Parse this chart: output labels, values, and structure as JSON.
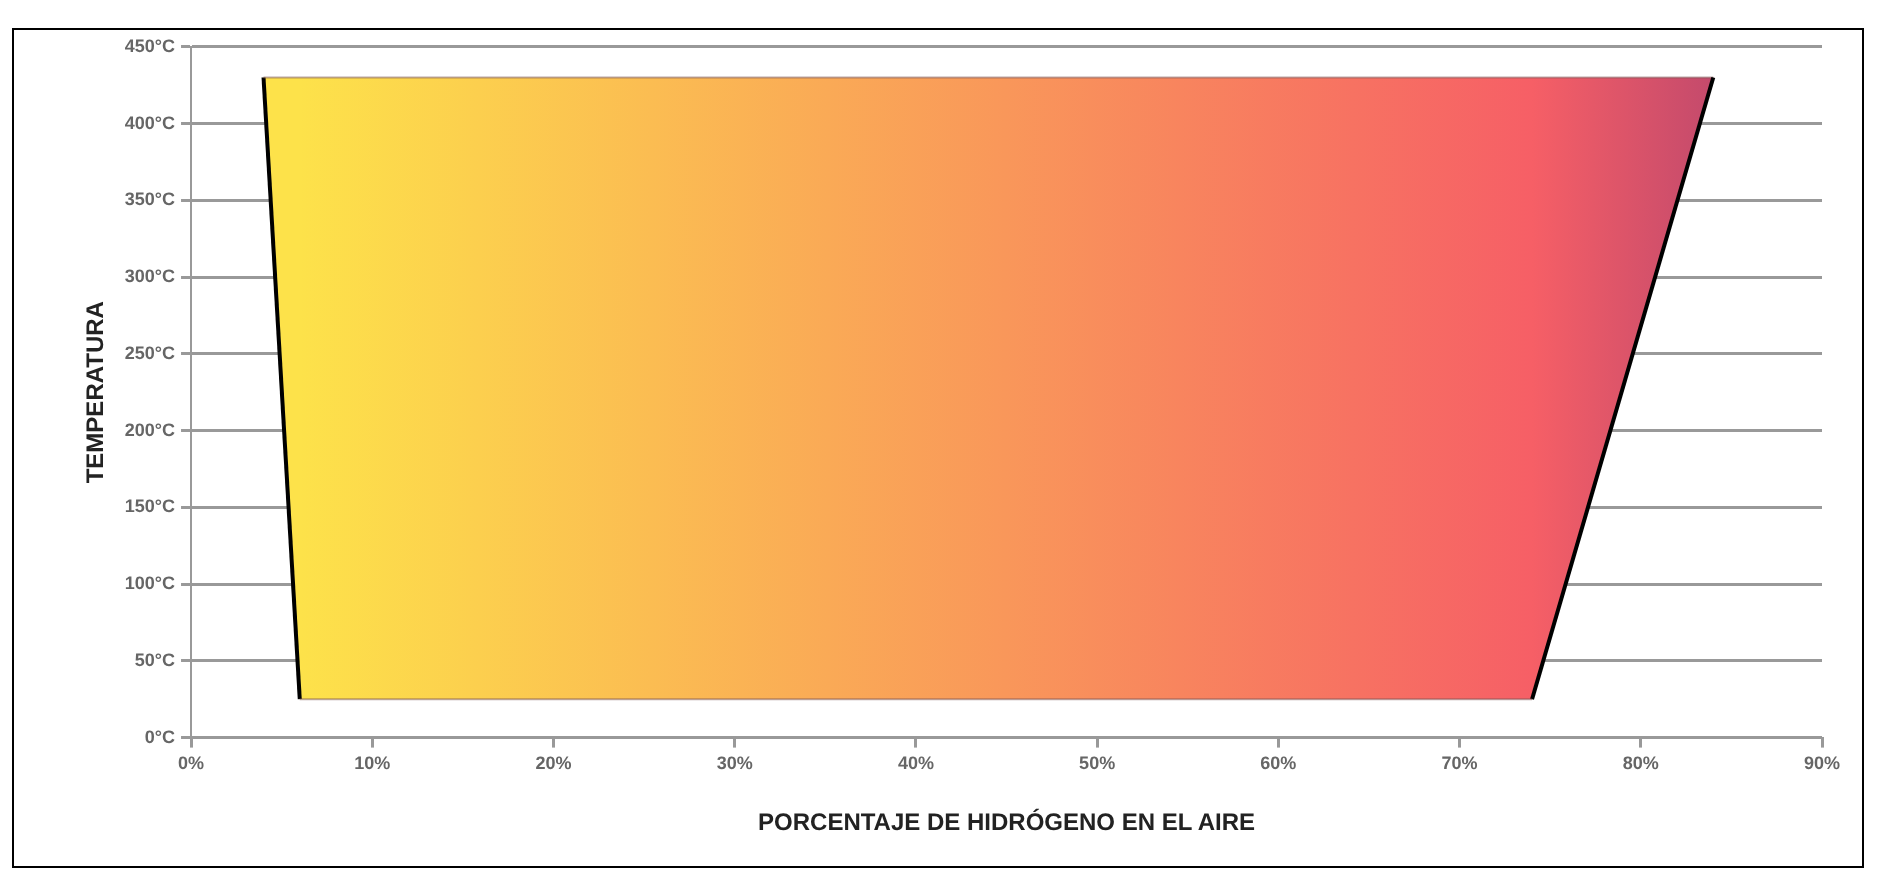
{
  "chart_data": {
    "type": "area",
    "xlabel": "PORCENTAJE DE HIDRÓGENO EN EL AIRE",
    "ylabel": "TEMPERATURA",
    "series": [
      {
        "color": "#000000",
        "x": [
          6,
          4,
          84,
          74,
          6
        ],
        "values": [
          25,
          430,
          430,
          25,
          25
        ],
        "colors": [
          "#fde24a",
          "#fde24a",
          "#c44a6c",
          "#f65f66",
          "#fde24a"
        ]
      }
    ],
    "xlim": [
      0,
      90
    ],
    "xticks": [
      {
        "value": 0,
        "label": "0%"
      },
      {
        "value": 10,
        "label": "10%"
      },
      {
        "value": 20,
        "label": "20%"
      },
      {
        "value": 30,
        "label": "30%"
      },
      {
        "value": 40,
        "label": "40%"
      },
      {
        "value": 50,
        "label": "50%"
      },
      {
        "value": 60,
        "label": "60%"
      },
      {
        "value": 70,
        "label": "70%"
      },
      {
        "value": 80,
        "label": "80%"
      },
      {
        "value": 90,
        "label": "90%"
      }
    ],
    "ylim": [
      0,
      450
    ],
    "yticks": [
      {
        "value": 0,
        "label": "0°C"
      },
      {
        "value": 50,
        "label": "50°C"
      },
      {
        "value": 100,
        "label": "100°C"
      },
      {
        "value": 150,
        "label": "150°C"
      },
      {
        "value": 200,
        "label": "200°C"
      },
      {
        "value": 250,
        "label": "250°C"
      },
      {
        "value": 300,
        "label": "300°C"
      },
      {
        "value": 350,
        "label": "350°C"
      },
      {
        "value": 400,
        "label": "400°C"
      },
      {
        "value": 450,
        "label": "450°C"
      }
    ],
    "grid": "y",
    "legend": false
  }
}
